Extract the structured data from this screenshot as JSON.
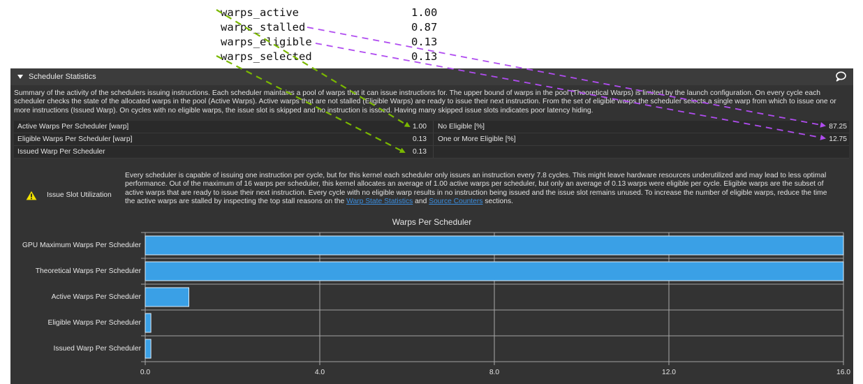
{
  "annotation": {
    "rows": [
      {
        "key": "warps_active",
        "value": "1.00"
      },
      {
        "key": "warps_stalled",
        "value": "0.87"
      },
      {
        "key": "warps_eligible",
        "value": "0.13"
      },
      {
        "key": "warps_selected",
        "value": "0.13"
      }
    ],
    "arrow_colors": {
      "green": "#7ab800",
      "purple": "#b04cf0"
    }
  },
  "section": {
    "title": "Scheduler Statistics",
    "expand_icon": "triangle-down-icon",
    "comment_icon": "speech-bubble-icon",
    "summary": "Summary of the activity of the schedulers issuing instructions. Each scheduler maintains a pool of warps that it can issue instructions for. The upper bound of warps in the pool (Theoretical Warps) is limited by the launch configuration. On every cycle each scheduler checks the state of the allocated warps in the pool (Active Warps). Active warps that are not stalled (Eligible Warps) are ready to issue their next instruction. From the set of eligible warps the scheduler selects a single warp from which to issue one or more instructions (Issued Warp). On cycles with no eligible warps, the issue slot is skipped and no instruction is issued. Having many skipped issue slots indicates poor latency hiding."
  },
  "metrics": {
    "rows": [
      {
        "left_name": "Active Warps Per Scheduler [warp]",
        "left_value": "1.00",
        "right_name": "No Eligible [%]",
        "right_value": "87.25"
      },
      {
        "left_name": "Eligible Warps Per Scheduler [warp]",
        "left_value": "0.13",
        "right_name": "One or More Eligible [%]",
        "right_value": "12.75"
      },
      {
        "left_name": "Issued Warp Per Scheduler",
        "left_value": "0.13",
        "right_name": "",
        "right_value": ""
      }
    ]
  },
  "issue": {
    "icon": "warning-icon",
    "title": "Issue Slot Utilization",
    "text_before": "Every scheduler is capable of issuing one instruction per cycle, but for this kernel each scheduler only issues an instruction every 7.8 cycles. This might leave hardware resources underutilized and may lead to less optimal performance. Out of the maximum of 16 warps per scheduler, this kernel allocates an average of 1.00 active warps per scheduler, but only an average of 0.13 warps were eligible per cycle. Eligible warps are the subset of active warps that are ready to issue their next instruction. Every cycle with no eligible warp results in no instruction being issued and the issue slot remains unused. To increase the number of eligible warps, reduce the time the active warps are stalled by inspecting the top stall reasons on the ",
    "link1": "Warp State Statistics",
    "text_mid": " and ",
    "link2": "Source Counters",
    "text_after": " sections."
  },
  "chart_data": {
    "type": "bar",
    "orientation": "horizontal",
    "title": "Warps Per Scheduler",
    "categories": [
      "GPU Maximum Warps Per Scheduler",
      "Theoretical Warps Per Scheduler",
      "Active Warps Per Scheduler",
      "Eligible Warps Per Scheduler",
      "Issued Warp Per Scheduler"
    ],
    "values": [
      16,
      16,
      1.0,
      0.13,
      0.13
    ],
    "xlabel": "",
    "ylabel": "",
    "xlim": [
      0,
      16
    ],
    "xticks": [
      "0.0",
      "4.0",
      "8.0",
      "12.0",
      "16.0"
    ],
    "grid": true,
    "bar_color": "#3aa0e6",
    "legend": null
  }
}
